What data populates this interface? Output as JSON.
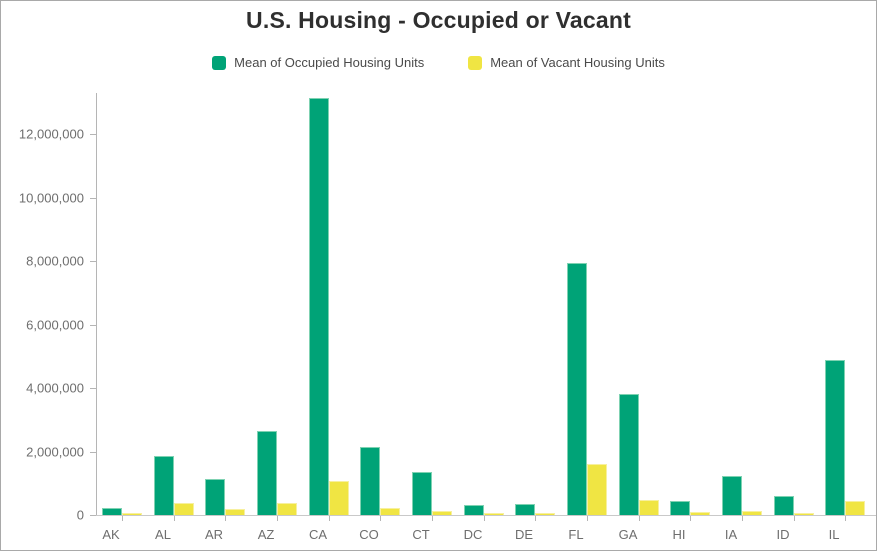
{
  "window": {
    "background": "#ffffff",
    "border_color": "#a9a9a9"
  },
  "header": {
    "title": "U.S. Housing - Occupied or Vacant"
  },
  "legend": {
    "items": [
      {
        "label": "Mean of Occupied Housing Units",
        "color": "#00a377"
      },
      {
        "label": "Mean of Vacant Housing Units",
        "color": "#f0e543"
      }
    ]
  },
  "chart_data": {
    "type": "bar",
    "title": "U.S. Housing - Occupied or Vacant",
    "xlabel": "",
    "ylabel": "",
    "grid": false,
    "legend_position": "top-center",
    "categories": [
      "AK",
      "AL",
      "AR",
      "AZ",
      "CA",
      "CO",
      "CT",
      "DC",
      "DE",
      "FL",
      "GA",
      "HI",
      "IA",
      "ID",
      "IL"
    ],
    "series": [
      {
        "name": "Mean of Occupied Housing Units",
        "color": "#00a377",
        "values": [
          225000,
          1860000,
          1130000,
          2630000,
          13120000,
          2130000,
          1370000,
          300000,
          345000,
          7950000,
          3810000,
          435000,
          1230000,
          600000,
          4880000
        ]
      },
      {
        "name": "Mean of Vacant Housing Units",
        "color": "#f0e543",
        "values": [
          55000,
          365000,
          190000,
          390000,
          1080000,
          215000,
          120000,
          50000,
          65000,
          1615000,
          485000,
          80000,
          135000,
          73000,
          450000
        ]
      }
    ],
    "ylim": [
      0,
      13400000
    ],
    "y_ticks": [
      0,
      2000000,
      4000000,
      6000000,
      8000000,
      10000000,
      12000000
    ],
    "y_tick_labels": [
      "0",
      "2,000,000",
      "4,000,000",
      "6,000,000",
      "8,000,000",
      "10,000,000",
      "12,000,000"
    ]
  }
}
